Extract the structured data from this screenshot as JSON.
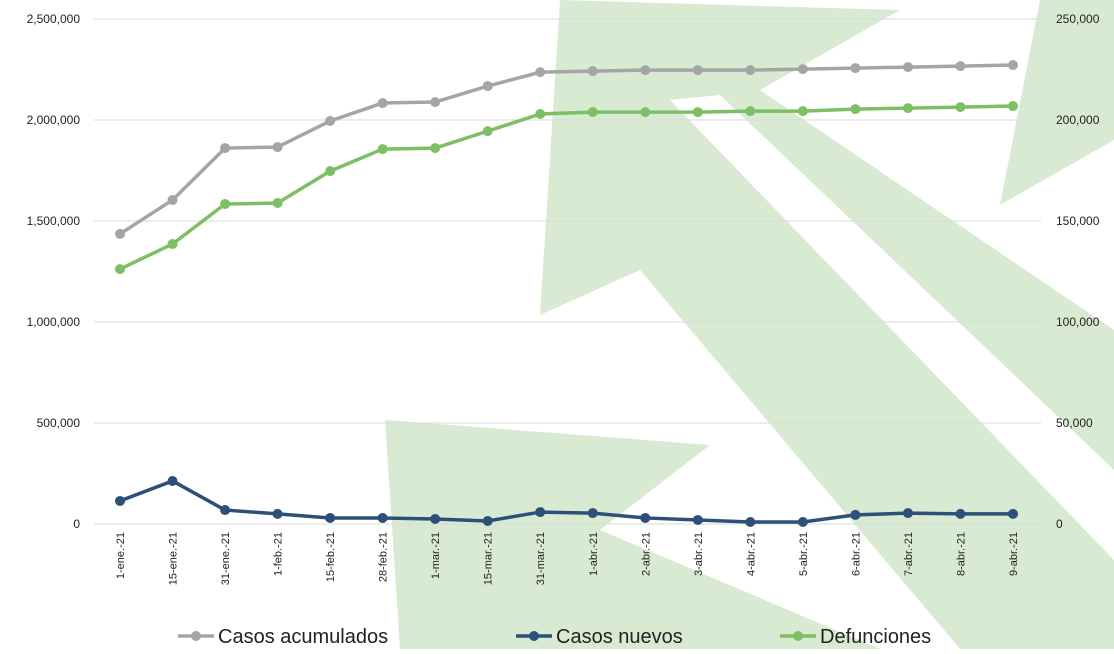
{
  "chart_data": {
    "type": "line",
    "categories": [
      "1-ene.-21",
      "15-ene.-21",
      "31-ene.-21",
      "1-feb.-21",
      "15-feb.-21",
      "28-feb.-21",
      "1-mar.-21",
      "15-mar.-21",
      "31-mar.-21",
      "1-abr.-21",
      "2-abr.-21",
      "3-abr.-21",
      "4-abr.-21",
      "5-abr.-21",
      "6-abr.-21",
      "7-abr.-21",
      "8-abr.-21",
      "9-abr.-21"
    ],
    "series": [
      {
        "name": "Casos acumulados",
        "color": "#a5a5a5",
        "values": [
          1436000,
          1604000,
          1861000,
          1866000,
          1995000,
          2084000,
          2089000,
          2168000,
          2237000,
          2242000,
          2247000,
          2247000,
          2247000,
          2252000,
          2257000,
          2262000,
          2267000,
          2272000
        ]
      },
      {
        "name": "Casos nuevos",
        "color": "#2e5078",
        "values": [
          114000,
          213000,
          69000,
          50000,
          30000,
          30000,
          25000,
          15000,
          59000,
          54000,
          30000,
          20000,
          10000,
          10000,
          45000,
          54000,
          50000,
          50000
        ]
      },
      {
        "name": "Defunciones",
        "color": "#7dbf64",
        "axis": "y2",
        "values": [
          126200,
          138600,
          158400,
          158900,
          174700,
          185600,
          186100,
          194500,
          203000,
          203900,
          203900,
          203900,
          204400,
          204400,
          205400,
          205900,
          206400,
          206900
        ]
      }
    ],
    "ylim": [
      0,
      2500000
    ],
    "yticks": [
      0,
      {
        "value": 500000,
        "label": "500,000"
      },
      {
        "value": 1000000,
        "label": "1,000,000"
      },
      {
        "value": 1500000,
        "label": "1,500,000"
      },
      {
        "value": 2000000,
        "label": "2,000,000"
      },
      {
        "value": 2500000,
        "label": "2,500,000"
      }
    ],
    "y2lim": [
      0,
      250000
    ],
    "y2ticks": [
      0,
      {
        "value": 50000,
        "label": "50,000"
      },
      {
        "value": 100000,
        "label": "100,000"
      },
      {
        "value": 150000,
        "label": "150,000"
      },
      {
        "value": 200000,
        "label": "200,000"
      },
      {
        "value": 250000,
        "label": "250,000"
      }
    ],
    "grid": true
  }
}
